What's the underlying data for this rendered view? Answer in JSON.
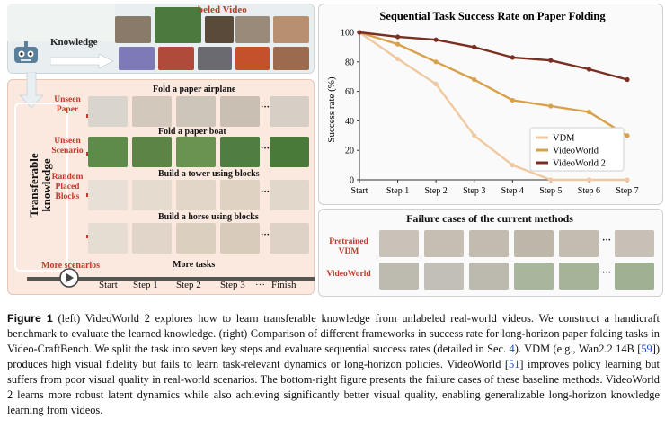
{
  "left_panel": {
    "video_label": "beled Video",
    "knowledge_word": "Knowledge",
    "side_label_line1": "Transferable",
    "side_label_line2": "knowledge",
    "rows": [
      {
        "label_line1": "Unseen",
        "label_line2": "Paper",
        "task": "Fold a paper airplane"
      },
      {
        "label_line1": "Unseen",
        "label_line2": "Scenario",
        "task": "Fold a paper boat"
      },
      {
        "label_line1": "Random",
        "label_line2": "Placed",
        "label_line3": "Blocks",
        "task": "Build a tower using blocks"
      },
      {
        "label_line1": "",
        "label_line2": "",
        "task": "Build a horse using blocks"
      }
    ],
    "more_scenarios": "More scenarios",
    "more_tasks": "More tasks",
    "ellipsis": "···",
    "timeline": [
      "Start",
      "Step 1",
      "Step 2",
      "Step 3",
      "···",
      "Finish"
    ],
    "colors": {
      "accent_red": "#c0392b",
      "panel_bg": "#fbe9df"
    }
  },
  "chart_data": {
    "type": "line",
    "title": "Sequential Task Success Rate on Paper Folding",
    "xlabel": "",
    "ylabel": "Success rate (%)",
    "categories": [
      "Start",
      "Step 1",
      "Step 2",
      "Step 3",
      "Step 4",
      "Step 5",
      "Step 6",
      "Step 7"
    ],
    "ylim": [
      0,
      100
    ],
    "yticks": [
      0,
      20,
      40,
      60,
      80,
      100
    ],
    "grid": false,
    "legend_position": "center-right",
    "series": [
      {
        "name": "VDM",
        "color": "#f0c9a0",
        "values": [
          100,
          82,
          65,
          30,
          10,
          0,
          0,
          0
        ]
      },
      {
        "name": "VideoWorld",
        "color": "#d9a04a",
        "values": [
          100,
          92,
          80,
          68,
          54,
          50,
          46,
          30
        ]
      },
      {
        "name": "VideoWorld 2",
        "color": "#7a2e22",
        "values": [
          100,
          97,
          95,
          90,
          83,
          81,
          75,
          68
        ]
      }
    ]
  },
  "failure_panel": {
    "title": "Failure cases of the current methods",
    "row1_line1": "Pretrained",
    "row1_line2": "VDM",
    "row2": "VideoWorld",
    "ellipsis": "···"
  },
  "caption": {
    "fig": "Figure 1",
    "p1": " (left) VideoWorld 2 explores how to learn transferable knowledge from unlabeled real-world videos. We construct a handicraft benchmark to evaluate the learned knowledge. (right) Comparison of different frameworks in success rate for long-horizon paper folding tasks in Video-CraftBench. We split the task into seven key steps and evaluate sequential success rates (detailed in Sec. ",
    "ref_sec": "4",
    "p2": "). VDM (e.g., Wan2.2 14B [",
    "ref_59": "59",
    "p3": "]) produces high visual fidelity but fails to learn task-relevant dynamics or long-horizon policies. VideoWorld [",
    "ref_51": "51",
    "p4": "] improves policy learning but suffers from poor visual quality in real-world scenarios. The bottom-right figure presents the failure cases of these baseline methods. VideoWorld 2 learns more robust latent dynamics while also achieving significantly better visual quality, enabling generalizable long-horizon knowledge learning from videos."
  }
}
